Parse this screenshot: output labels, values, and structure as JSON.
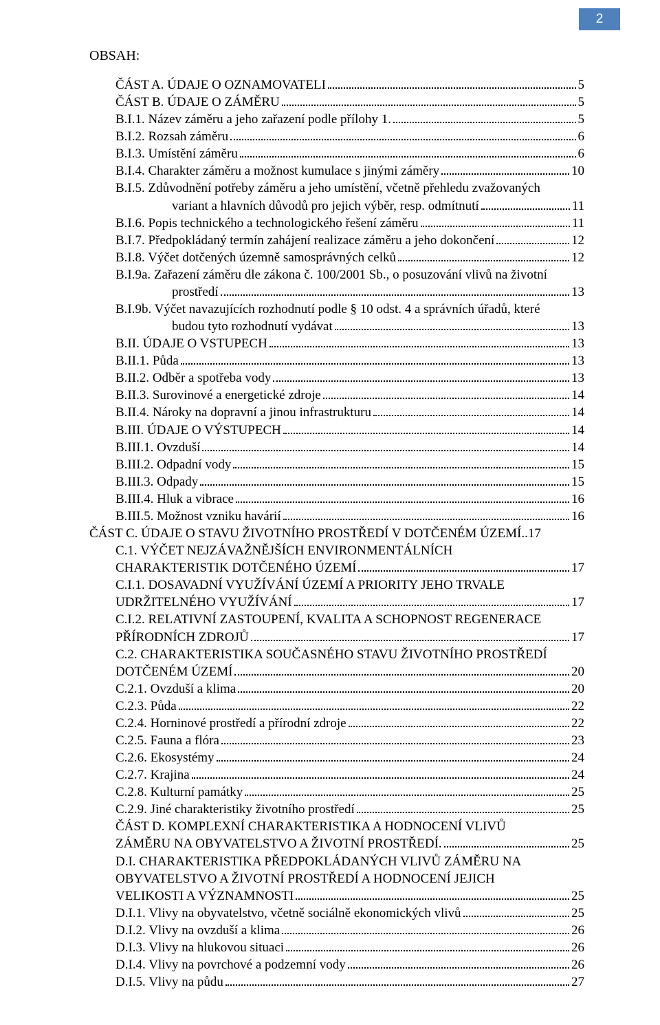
{
  "page_number": "2",
  "heading": "OBSAH:",
  "colors": {
    "page_number_bg": "#4f81bd",
    "page_number_text": "#ffffff",
    "text": "#000000",
    "background": "#ffffff"
  },
  "typography": {
    "body_font": "Times New Roman",
    "body_size_pt": 14,
    "pagenum_font": "Arial"
  },
  "toc": [
    {
      "indent": 1,
      "text": "ČÁST A. ÚDAJE O OZNAMOVATELI",
      "page": "5"
    },
    {
      "indent": 1,
      "text": "ČÁST B. ÚDAJE O ZÁMĚRU",
      "page": "5"
    },
    {
      "indent": 2,
      "text": "B.I.1. Název záměru a jeho zařazení podle přílohy 1.",
      "page": "5"
    },
    {
      "indent": 2,
      "text": "B.I.2. Rozsah záměru",
      "page": "6"
    },
    {
      "indent": 2,
      "text": "B.I.3. Umístění záměru",
      "page": "6"
    },
    {
      "indent": 2,
      "text": "B.I.4. Charakter záměru a možnost kumulace s jinými záměry",
      "page": "10"
    },
    {
      "indent": 2,
      "text": "B.I.5. Zdůvodnění potřeby záměru a jeho umístění, včetně přehledu zvažovaných",
      "wrap": "variant a hlavních důvodů pro jejich výběr, resp. odmítnutí",
      "page": "11"
    },
    {
      "indent": 2,
      "text": "B.I.6. Popis technického a technologického řešení záměru",
      "page": "11"
    },
    {
      "indent": 2,
      "text": "B.I.7. Předpokládaný termín zahájení realizace záměru a jeho dokončení",
      "page": "12"
    },
    {
      "indent": 2,
      "text": "B.I.8. Výčet dotčených územně samosprávných celků",
      "page": "12"
    },
    {
      "indent": 2,
      "text": "B.I.9a. Zařazení záměru dle zákona č. 100/2001 Sb., o posuzování vlivů na životní",
      "wrap": "prostředí",
      "page": "13"
    },
    {
      "indent": 2,
      "text": "B.I.9b. Výčet navazujících rozhodnutí podle § 10 odst. 4 a správních úřadů, které",
      "wrap": "budou tyto rozhodnutí vydávat",
      "page": "13"
    },
    {
      "indent": 2,
      "text": "B.II. ÚDAJE O VSTUPECH",
      "page": "13"
    },
    {
      "indent": 2,
      "text": "B.II.1. Půda",
      "page": "13"
    },
    {
      "indent": 2,
      "text": "B.II.2. Odběr a spotřeba vody",
      "page": "13"
    },
    {
      "indent": 2,
      "text": "B.II.3. Surovinové a energetické zdroje",
      "page": "14"
    },
    {
      "indent": 2,
      "text": "B.II.4. Nároky na dopravní a jinou infrastrukturu",
      "page": "14"
    },
    {
      "indent": 2,
      "text": "B.III. ÚDAJE O VÝSTUPECH",
      "page": "14"
    },
    {
      "indent": 2,
      "text": "B.III.1. Ovzduší",
      "page": "14"
    },
    {
      "indent": 2,
      "text": "B.III.2. Odpadní vody",
      "page": "15"
    },
    {
      "indent": 2,
      "text": "B.III.3. Odpady",
      "page": "15"
    },
    {
      "indent": 2,
      "text": "B.III.4. Hluk a vibrace",
      "page": "16"
    },
    {
      "indent": 2,
      "text": "B.III.5. Možnost vzniku havárií",
      "page": "16"
    },
    {
      "indent": 0,
      "text": "ČÁST C.  ÚDAJE O STAVU ŽIVOTNÍHO PROSTŘEDÍ V DOTČENÉM ÚZEMÍ",
      "page": "17",
      "leader_dots": ".."
    },
    {
      "indent": 2,
      "text": "C.1. VÝČET NEJZÁVAŽNĚJŠÍCH ENVIRONMENTÁLNÍCH",
      "wrap_noindent": "CHARAKTERISTIK DOTČENÉHO ÚZEMÍ",
      "page": "17"
    },
    {
      "indent": 2,
      "text": "C.I.1. DOSAVADNÍ VYUŽÍVÁNÍ ÚZEMÍ A PRIORITY JEHO TRVALE",
      "wrap_noindent": "UDRŽITELNÉHO VYUŽÍVÁNÍ",
      "page": "17"
    },
    {
      "indent": 2,
      "text": "C.I.2. RELATIVNÍ ZASTOUPENÍ, KVALITA A SCHOPNOST REGENERACE",
      "wrap_noindent": "PŘÍRODNÍCH  ZDROJŮ",
      "page": "17"
    },
    {
      "indent": 2,
      "text": "C.2. CHARAKTERISTIKA SOUČASNÉHO STAVU ŽIVOTNÍHO PROSTŘEDÍ",
      "wrap_noindent": "DOTČENÉM ÚZEMÍ",
      "page": "20"
    },
    {
      "indent": 2,
      "text": "C.2.1. Ovzduší a klima",
      "page": "20"
    },
    {
      "indent": 2,
      "text": "C.2.3. Půda",
      "page": "22"
    },
    {
      "indent": 2,
      "text": "C.2.4. Horninové prostředí a přírodní zdroje",
      "page": "22"
    },
    {
      "indent": 2,
      "text": "C.2.5. Fauna a flóra",
      "page": "23"
    },
    {
      "indent": 2,
      "text": "C.2.6. Ekosystémy",
      "page": "24"
    },
    {
      "indent": 2,
      "text": "C.2.7. Krajina",
      "page": "24"
    },
    {
      "indent": 2,
      "text": "C.2.8. Kulturní památky",
      "page": "25"
    },
    {
      "indent": 2,
      "text": "C.2.9. Jiné charakteristiky životního prostředí",
      "page": "25"
    },
    {
      "indent": 1,
      "text": "ČÁST D. KOMPLEXNÍ CHARAKTERISTIKA A HODNOCENÍ VLIVŮ",
      "wrap_noindent": "ZÁMĚRU NA   OBYVATELSTVO A ŽIVOTNÍ PROSTŘEDÍ.",
      "page": "25"
    },
    {
      "indent": 2,
      "text": "D.I. CHARAKTERISTIKA PŘEDPOKLÁDANÝCH VLIVŮ ZÁMĚRU NA",
      "wrap_noindent_multi": [
        "OBYVATELSTVO A  ŽIVOTNÍ PROSTŘEDÍ  A HODNOCENÍ JEJICH",
        "VELIKOSTI A VÝZNAMNOSTI"
      ],
      "page": "25"
    },
    {
      "indent": 2,
      "text": "D.I.1. Vlivy na obyvatelstvo, včetně sociálně ekonomických vlivů",
      "page": "25"
    },
    {
      "indent": 2,
      "text": "D.I.2. Vlivy na ovzduší a klima",
      "page": "26"
    },
    {
      "indent": 2,
      "text": "D.I.3. Vlivy na hlukovou situaci",
      "page": "26"
    },
    {
      "indent": 2,
      "text": "D.I.4. Vlivy na povrchové a podzemní vody",
      "page": "26"
    },
    {
      "indent": 2,
      "text": "D.I.5. Vlivy na půdu",
      "page": "27"
    }
  ]
}
